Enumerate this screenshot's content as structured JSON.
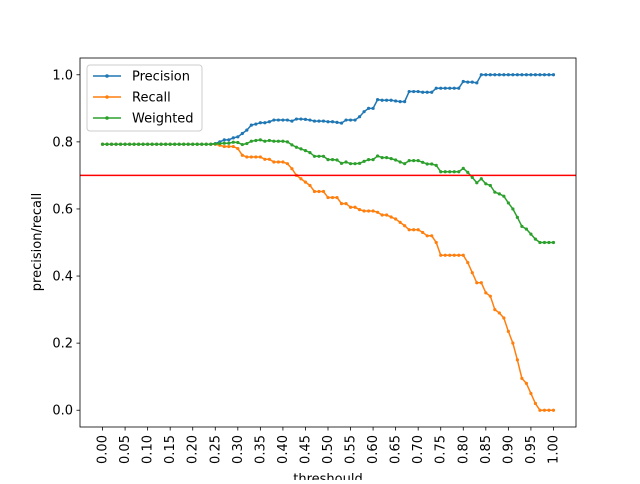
{
  "chart_data": {
    "type": "line",
    "title": "",
    "xlabel": "threshould",
    "ylabel": "precision/recall",
    "xlim": [
      -0.05,
      1.05
    ],
    "ylim": [
      -0.05,
      1.05
    ],
    "xticks": [
      "0.00",
      "0.05",
      "0.10",
      "0.15",
      "0.20",
      "0.25",
      "0.30",
      "0.35",
      "0.40",
      "0.45",
      "0.50",
      "0.55",
      "0.60",
      "0.65",
      "0.70",
      "0.75",
      "0.80",
      "0.85",
      "0.90",
      "0.95",
      "1.00"
    ],
    "yticks": [
      "0.0",
      "0.2",
      "0.4",
      "0.6",
      "0.8",
      "1.0"
    ],
    "grid": false,
    "legend_position": "upper-left",
    "hline": {
      "y": 0.7,
      "color": "#ff0000"
    },
    "x": [
      0.0,
      0.01,
      0.02,
      0.03,
      0.04,
      0.05,
      0.06,
      0.07,
      0.08,
      0.09,
      0.1,
      0.11,
      0.12,
      0.13,
      0.14,
      0.15,
      0.16,
      0.17,
      0.18,
      0.19,
      0.2,
      0.21,
      0.22,
      0.23,
      0.24,
      0.25,
      0.26,
      0.27,
      0.28,
      0.29,
      0.3,
      0.31,
      0.32,
      0.33,
      0.34,
      0.35,
      0.36,
      0.37,
      0.38,
      0.39,
      0.4,
      0.41,
      0.42,
      0.43,
      0.44,
      0.45,
      0.46,
      0.47,
      0.48,
      0.49,
      0.5,
      0.51,
      0.52,
      0.53,
      0.54,
      0.55,
      0.56,
      0.57,
      0.58,
      0.59,
      0.6,
      0.61,
      0.62,
      0.63,
      0.64,
      0.65,
      0.66,
      0.67,
      0.68,
      0.69,
      0.7,
      0.71,
      0.72,
      0.73,
      0.74,
      0.75,
      0.76,
      0.77,
      0.78,
      0.79,
      0.8,
      0.81,
      0.82,
      0.83,
      0.84,
      0.85,
      0.86,
      0.87,
      0.88,
      0.89,
      0.9,
      0.91,
      0.92,
      0.93,
      0.94,
      0.95,
      0.96,
      0.97,
      0.98,
      0.99,
      1.0
    ],
    "series": [
      {
        "name": "Precision",
        "color": "#1f77b4",
        "values": [
          0.793,
          0.793,
          0.793,
          0.793,
          0.793,
          0.793,
          0.793,
          0.793,
          0.793,
          0.793,
          0.793,
          0.793,
          0.793,
          0.793,
          0.793,
          0.793,
          0.793,
          0.793,
          0.793,
          0.793,
          0.793,
          0.793,
          0.793,
          0.793,
          0.793,
          0.795,
          0.8,
          0.806,
          0.806,
          0.812,
          0.815,
          0.825,
          0.835,
          0.85,
          0.853,
          0.857,
          0.857,
          0.86,
          0.865,
          0.865,
          0.865,
          0.865,
          0.862,
          0.868,
          0.868,
          0.867,
          0.865,
          0.862,
          0.862,
          0.862,
          0.86,
          0.86,
          0.858,
          0.856,
          0.865,
          0.865,
          0.865,
          0.875,
          0.89,
          0.9,
          0.9,
          0.926,
          0.924,
          0.924,
          0.924,
          0.922,
          0.92,
          0.92,
          0.95,
          0.95,
          0.95,
          0.948,
          0.948,
          0.948,
          0.96,
          0.96,
          0.96,
          0.96,
          0.96,
          0.96,
          0.98,
          0.978,
          0.978,
          0.976,
          1.0,
          1.0,
          1.0,
          1.0,
          1.0,
          1.0,
          1.0,
          1.0,
          1.0,
          1.0,
          1.0,
          1.0,
          1.0,
          1.0,
          1.0,
          1.0,
          1.0
        ]
      },
      {
        "name": "Recall",
        "color": "#ff7f0e",
        "values": [
          0.793,
          0.793,
          0.793,
          0.793,
          0.793,
          0.793,
          0.793,
          0.793,
          0.793,
          0.793,
          0.793,
          0.793,
          0.793,
          0.793,
          0.793,
          0.793,
          0.793,
          0.793,
          0.793,
          0.793,
          0.793,
          0.793,
          0.793,
          0.793,
          0.793,
          0.793,
          0.79,
          0.786,
          0.786,
          0.786,
          0.78,
          0.76,
          0.755,
          0.755,
          0.755,
          0.755,
          0.748,
          0.748,
          0.74,
          0.74,
          0.74,
          0.735,
          0.72,
          0.7,
          0.69,
          0.68,
          0.67,
          0.652,
          0.652,
          0.652,
          0.634,
          0.634,
          0.634,
          0.616,
          0.616,
          0.605,
          0.605,
          0.598,
          0.594,
          0.594,
          0.594,
          0.59,
          0.582,
          0.582,
          0.576,
          0.57,
          0.56,
          0.55,
          0.538,
          0.538,
          0.538,
          0.53,
          0.52,
          0.52,
          0.5,
          0.462,
          0.462,
          0.462,
          0.462,
          0.462,
          0.462,
          0.44,
          0.41,
          0.38,
          0.38,
          0.35,
          0.34,
          0.3,
          0.29,
          0.275,
          0.235,
          0.2,
          0.15,
          0.095,
          0.08,
          0.05,
          0.02,
          0.0,
          0.0,
          0.0,
          0.0
        ]
      },
      {
        "name": "Weighted",
        "color": "#2ca02c",
        "values": [
          0.793,
          0.793,
          0.793,
          0.793,
          0.793,
          0.793,
          0.793,
          0.793,
          0.793,
          0.793,
          0.793,
          0.793,
          0.793,
          0.793,
          0.793,
          0.793,
          0.793,
          0.793,
          0.793,
          0.793,
          0.793,
          0.793,
          0.793,
          0.793,
          0.793,
          0.794,
          0.795,
          0.796,
          0.796,
          0.799,
          0.798,
          0.792,
          0.795,
          0.802,
          0.804,
          0.806,
          0.802,
          0.804,
          0.802,
          0.802,
          0.802,
          0.8,
          0.791,
          0.784,
          0.779,
          0.774,
          0.768,
          0.757,
          0.757,
          0.757,
          0.747,
          0.747,
          0.746,
          0.736,
          0.74,
          0.735,
          0.735,
          0.736,
          0.742,
          0.747,
          0.747,
          0.758,
          0.753,
          0.753,
          0.75,
          0.746,
          0.74,
          0.735,
          0.744,
          0.744,
          0.744,
          0.739,
          0.734,
          0.734,
          0.73,
          0.711,
          0.711,
          0.711,
          0.711,
          0.711,
          0.721,
          0.709,
          0.694,
          0.678,
          0.69,
          0.675,
          0.67,
          0.65,
          0.645,
          0.638,
          0.618,
          0.6,
          0.575,
          0.548,
          0.54,
          0.525,
          0.51,
          0.5,
          0.5,
          0.5,
          0.5
        ]
      }
    ]
  }
}
